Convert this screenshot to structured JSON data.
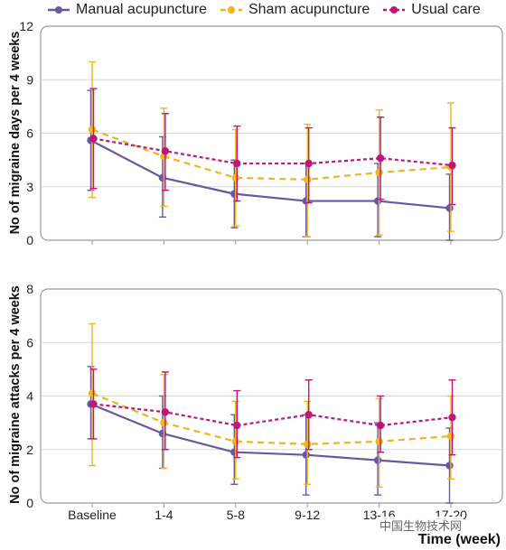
{
  "colors": {
    "manual": "#6b56a6",
    "sham": "#f0b41c",
    "usual": "#c0157a",
    "frame": "#9a9a9a",
    "grid": "#d6d6d6"
  },
  "x_axis_title": "Time (week)",
  "watermark": "中国生物技术网",
  "chart_data": [
    {
      "type": "line",
      "ylabel": "No of migraine days per 4 weeks",
      "ylim": [
        0,
        12
      ],
      "yticks": [
        0,
        3,
        6,
        9,
        12
      ],
      "grid": true,
      "legend_position": "top",
      "categories": [
        "Baseline",
        "1-4",
        "5-8",
        "9-12",
        "13-16",
        "17-20"
      ],
      "series": [
        {
          "name": "Manual acupuncture",
          "color_key": "manual",
          "dashed": false,
          "values": [
            5.6,
            3.5,
            2.6,
            2.2,
            2.2,
            1.8
          ],
          "err_low": [
            2.8,
            1.3,
            0.7,
            0.2,
            0.2,
            0.0
          ],
          "err_high": [
            8.4,
            5.8,
            4.5,
            4.3,
            4.3,
            3.7
          ]
        },
        {
          "name": "Sham acupuncture",
          "color_key": "sham",
          "dashed": true,
          "values": [
            6.2,
            4.7,
            3.5,
            3.4,
            3.8,
            4.1
          ],
          "err_low": [
            2.4,
            1.9,
            0.8,
            0.2,
            0.3,
            0.5
          ],
          "err_high": [
            10.0,
            7.4,
            6.2,
            6.5,
            7.3,
            7.7
          ]
        },
        {
          "name": "Usual care",
          "color_key": "usual",
          "dashed": true,
          "values": [
            5.7,
            5.0,
            4.3,
            4.3,
            4.6,
            4.2
          ],
          "err_low": [
            2.9,
            2.8,
            2.2,
            2.1,
            2.3,
            2.0
          ],
          "err_high": [
            8.5,
            7.1,
            6.4,
            6.3,
            6.9,
            6.3
          ]
        }
      ]
    },
    {
      "type": "line",
      "ylabel": "No of migraine attacks per 4 weeks",
      "ylim": [
        0,
        8
      ],
      "yticks": [
        0,
        2,
        4,
        6,
        8
      ],
      "grid": true,
      "categories": [
        "Baseline",
        "1-4",
        "5-8",
        "9-12",
        "13-16",
        "17-20"
      ],
      "series": [
        {
          "name": "Manual acupuncture",
          "color_key": "manual",
          "dashed": false,
          "values": [
            3.7,
            2.6,
            1.9,
            1.8,
            1.6,
            1.4
          ],
          "err_low": [
            2.4,
            1.3,
            0.7,
            0.3,
            0.3,
            0.0
          ],
          "err_high": [
            5.1,
            4.0,
            3.3,
            3.3,
            3.0,
            2.8
          ]
        },
        {
          "name": "Sham acupuncture",
          "color_key": "sham",
          "dashed": true,
          "values": [
            4.1,
            3.0,
            2.3,
            2.2,
            2.3,
            2.5
          ],
          "err_low": [
            1.4,
            1.3,
            0.9,
            0.7,
            0.6,
            0.9
          ],
          "err_high": [
            6.7,
            4.8,
            3.8,
            3.8,
            3.9,
            4.0
          ]
        },
        {
          "name": "Usual care",
          "color_key": "usual",
          "dashed": true,
          "values": [
            3.7,
            3.4,
            2.9,
            3.3,
            2.9,
            3.2
          ],
          "err_low": [
            2.4,
            2.0,
            1.7,
            2.0,
            1.9,
            1.8
          ],
          "err_high": [
            5.0,
            4.9,
            4.2,
            4.6,
            4.0,
            4.6
          ]
        }
      ]
    }
  ]
}
